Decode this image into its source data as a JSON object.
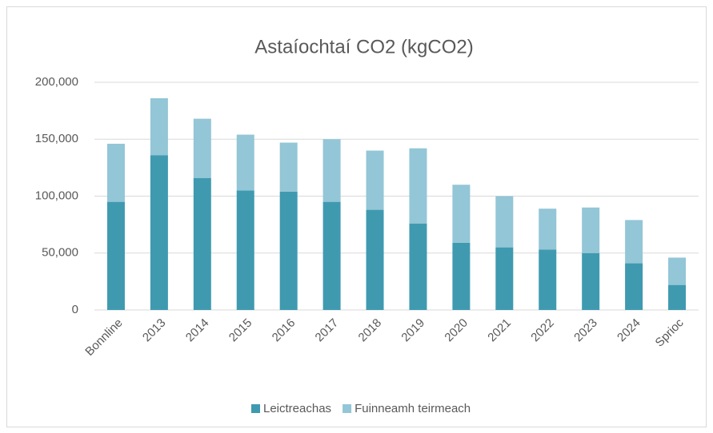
{
  "chart_data": {
    "type": "stacked_bar",
    "title": "Astaíochtaí CO2 (kgCO2)",
    "categories": [
      "Bonnline",
      "2013",
      "2014",
      "2015",
      "2016",
      "2017",
      "2018",
      "2019",
      "2020",
      "2021",
      "2022",
      "2023",
      "2024",
      "Sprioc"
    ],
    "series": [
      {
        "name": "Leictreachas",
        "color": "#3f9ab0",
        "values": [
          95000,
          136000,
          116000,
          105000,
          104000,
          95000,
          88000,
          76000,
          59000,
          55000,
          53000,
          50000,
          41000,
          22000
        ]
      },
      {
        "name": "Fuinneamh teirmeach",
        "color": "#93c6d6",
        "values": [
          51000,
          50000,
          52000,
          49000,
          43000,
          55000,
          52000,
          66000,
          51000,
          45000,
          36000,
          40000,
          38000,
          24000
        ]
      }
    ],
    "ylim": [
      0,
      200000
    ],
    "yticks": [
      0,
      {
        "value": 50000,
        "label": "50,000"
      },
      {
        "value": 100000,
        "label": "100,000"
      },
      {
        "value": 150000,
        "label": "150,000"
      },
      {
        "value": 200000,
        "label": "200,000"
      }
    ],
    "grid": true,
    "legend": "bottom"
  }
}
